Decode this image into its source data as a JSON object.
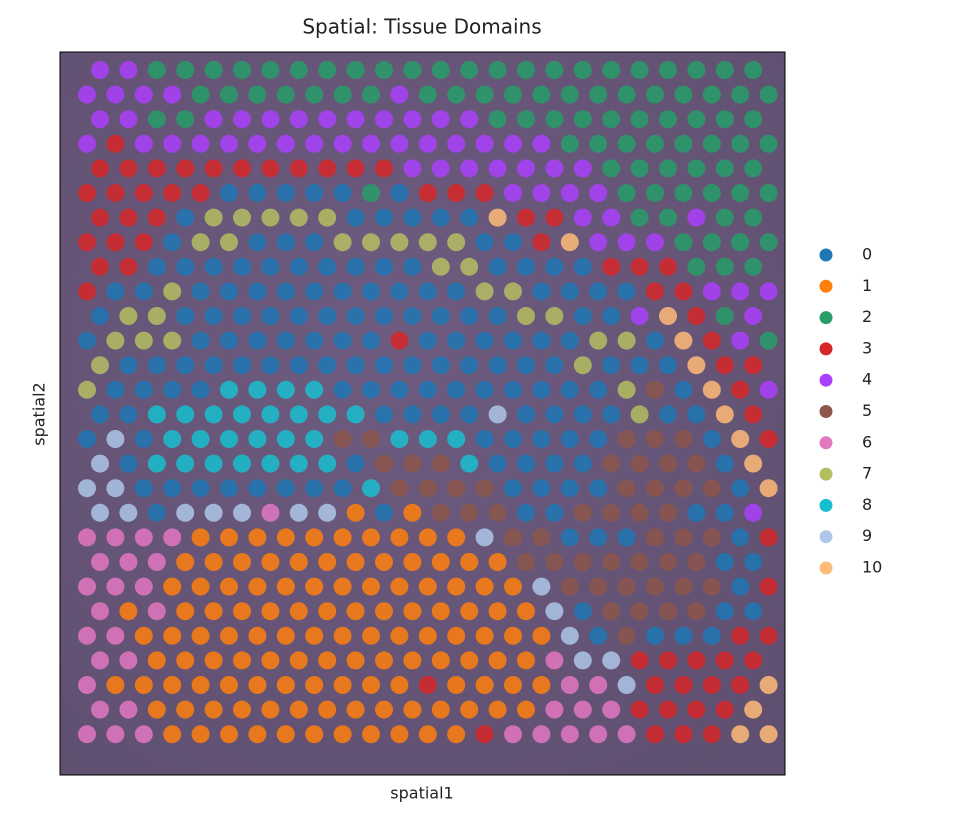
{
  "chart_data": {
    "type": "scatter",
    "title": "Spatial: Tissue Domains",
    "xlabel": "spatial1",
    "ylabel": "spatial2",
    "categories": [
      "0",
      "1",
      "2",
      "3",
      "4",
      "5",
      "6",
      "7",
      "8",
      "9",
      "10"
    ],
    "colors": [
      "#1f77b4",
      "#ff7f0e",
      "#279e68",
      "#d62728",
      "#aa40fc",
      "#8c564b",
      "#e377c2",
      "#b5bd61",
      "#17becf",
      "#aec7e8",
      "#ffbb78"
    ],
    "spots": [
      [
        4,
        4,
        2,
        2,
        2,
        2,
        2,
        2,
        2,
        2,
        2,
        2,
        2,
        2,
        2,
        2,
        2,
        2,
        2,
        2,
        2,
        2,
        2,
        2
      ],
      [
        4,
        4,
        4,
        4,
        2,
        2,
        2,
        2,
        2,
        2,
        2,
        4,
        2,
        2,
        2,
        2,
        2,
        2,
        2,
        2,
        2,
        2,
        2,
        2,
        2
      ],
      [
        4,
        4,
        2,
        2,
        4,
        4,
        4,
        4,
        4,
        4,
        4,
        4,
        4,
        4,
        2,
        2,
        2,
        2,
        2,
        2,
        2,
        2,
        2,
        2
      ],
      [
        4,
        3,
        4,
        4,
        4,
        4,
        4,
        4,
        4,
        4,
        4,
        4,
        4,
        4,
        4,
        4,
        4,
        2,
        2,
        2,
        2,
        2,
        2,
        2,
        2
      ],
      [
        3,
        3,
        3,
        3,
        3,
        3,
        3,
        3,
        3,
        3,
        3,
        4,
        4,
        4,
        4,
        4,
        4,
        4,
        2,
        2,
        2,
        2,
        2,
        2
      ],
      [
        3,
        3,
        3,
        3,
        3,
        0,
        0,
        0,
        0,
        0,
        2,
        0,
        3,
        3,
        3,
        4,
        4,
        4,
        4,
        2,
        2,
        2,
        2,
        2,
        2
      ],
      [
        3,
        3,
        3,
        0,
        7,
        7,
        7,
        7,
        7,
        0,
        0,
        0,
        0,
        0,
        10,
        3,
        3,
        4,
        4,
        2,
        2,
        4,
        2,
        2
      ],
      [
        3,
        3,
        3,
        0,
        7,
        7,
        0,
        0,
        0,
        7,
        7,
        7,
        7,
        7,
        0,
        0,
        3,
        10,
        4,
        4,
        4,
        2,
        2,
        2,
        2
      ],
      [
        3,
        3,
        0,
        0,
        0,
        0,
        0,
        0,
        0,
        0,
        0,
        0,
        7,
        7,
        0,
        0,
        0,
        0,
        3,
        3,
        3,
        2,
        2,
        2
      ],
      [
        3,
        0,
        0,
        7,
        0,
        0,
        0,
        0,
        0,
        0,
        0,
        0,
        0,
        0,
        7,
        7,
        0,
        0,
        0,
        0,
        3,
        3,
        4,
        4,
        4
      ],
      [
        0,
        7,
        7,
        0,
        0,
        0,
        0,
        0,
        0,
        0,
        0,
        0,
        0,
        0,
        0,
        7,
        7,
        0,
        0,
        4,
        10,
        3,
        2,
        4
      ],
      [
        0,
        7,
        7,
        7,
        0,
        0,
        0,
        0,
        0,
        0,
        0,
        3,
        0,
        0,
        0,
        0,
        0,
        0,
        7,
        7,
        0,
        10,
        3,
        4,
        2
      ],
      [
        7,
        0,
        0,
        0,
        0,
        0,
        0,
        0,
        0,
        0,
        0,
        0,
        0,
        0,
        0,
        0,
        0,
        7,
        0,
        0,
        0,
        10,
        3,
        3
      ],
      [
        7,
        0,
        0,
        0,
        0,
        8,
        8,
        8,
        8,
        0,
        0,
        0,
        0,
        0,
        0,
        0,
        0,
        0,
        0,
        7,
        5,
        0,
        10,
        3,
        4
      ],
      [
        0,
        0,
        8,
        8,
        8,
        8,
        8,
        8,
        8,
        8,
        0,
        0,
        0,
        0,
        9,
        0,
        0,
        0,
        0,
        7,
        0,
        0,
        10,
        3
      ],
      [
        0,
        9,
        0,
        8,
        8,
        8,
        8,
        8,
        8,
        5,
        5,
        8,
        8,
        8,
        0,
        0,
        0,
        0,
        0,
        5,
        5,
        5,
        0,
        10,
        3
      ],
      [
        9,
        0,
        8,
        8,
        8,
        8,
        8,
        8,
        8,
        0,
        5,
        5,
        5,
        8,
        0,
        0,
        0,
        0,
        5,
        5,
        5,
        5,
        0,
        10
      ],
      [
        9,
        9,
        0,
        0,
        0,
        0,
        0,
        0,
        0,
        0,
        8,
        5,
        5,
        5,
        5,
        0,
        0,
        0,
        0,
        5,
        5,
        5,
        5,
        0,
        10
      ],
      [
        9,
        9,
        0,
        9,
        9,
        9,
        6,
        9,
        9,
        1,
        0,
        1,
        5,
        5,
        5,
        0,
        0,
        5,
        5,
        5,
        5,
        0,
        0,
        4
      ],
      [
        6,
        6,
        6,
        6,
        1,
        1,
        1,
        1,
        1,
        1,
        1,
        1,
        1,
        1,
        9,
        5,
        5,
        0,
        0,
        0,
        5,
        5,
        5,
        0,
        3
      ],
      [
        6,
        6,
        6,
        1,
        1,
        1,
        1,
        1,
        1,
        1,
        1,
        1,
        1,
        1,
        1,
        5,
        5,
        5,
        5,
        5,
        5,
        5,
        0,
        0
      ],
      [
        6,
        6,
        6,
        1,
        1,
        1,
        1,
        1,
        1,
        1,
        1,
        1,
        1,
        1,
        1,
        1,
        9,
        5,
        5,
        5,
        5,
        5,
        5,
        0,
        3
      ],
      [
        6,
        1,
        6,
        1,
        1,
        1,
        1,
        1,
        1,
        1,
        1,
        1,
        1,
        1,
        1,
        1,
        9,
        0,
        5,
        5,
        5,
        5,
        0,
        0
      ],
      [
        6,
        6,
        1,
        1,
        1,
        1,
        1,
        1,
        1,
        1,
        1,
        1,
        1,
        1,
        1,
        1,
        1,
        9,
        0,
        5,
        0,
        0,
        0,
        3,
        3
      ],
      [
        6,
        6,
        1,
        1,
        1,
        1,
        1,
        1,
        1,
        1,
        1,
        1,
        1,
        1,
        1,
        1,
        6,
        9,
        9,
        3,
        3,
        3,
        3,
        3
      ],
      [
        6,
        1,
        1,
        1,
        1,
        1,
        1,
        1,
        1,
        1,
        1,
        1,
        3,
        1,
        1,
        1,
        1,
        6,
        6,
        9,
        3,
        3,
        3,
        3,
        10
      ],
      [
        6,
        6,
        1,
        1,
        1,
        1,
        1,
        1,
        1,
        1,
        1,
        1,
        1,
        1,
        1,
        1,
        6,
        6,
        6,
        3,
        3,
        3,
        3,
        10
      ],
      [
        6,
        6,
        6,
        1,
        1,
        1,
        1,
        1,
        1,
        1,
        1,
        1,
        1,
        1,
        3,
        6,
        6,
        6,
        6,
        6,
        3,
        3,
        3,
        10,
        10
      ]
    ]
  }
}
